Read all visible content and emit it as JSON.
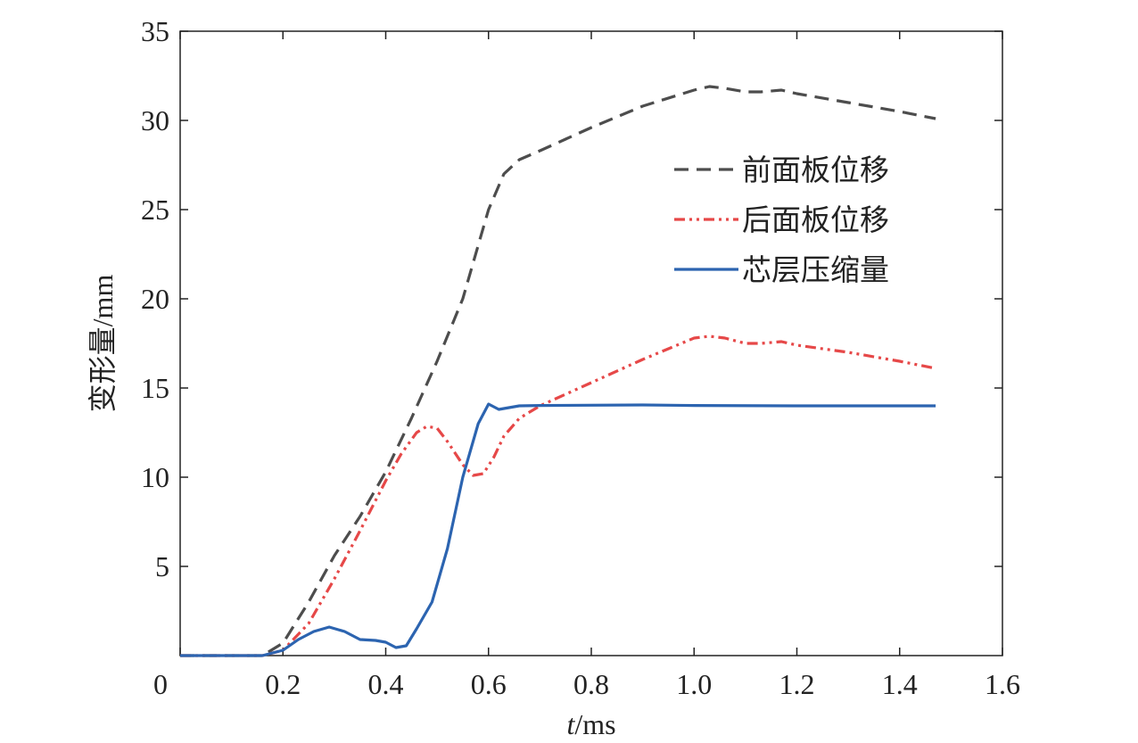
{
  "chart_data": {
    "type": "line",
    "xlabel_italic": "t",
    "xlabel_rest": "/ms",
    "ylabel": "变形量/mm",
    "xlim": [
      0,
      1.6
    ],
    "ylim": [
      0,
      35
    ],
    "xticks": [
      "0",
      "0.2",
      "0.4",
      "0.6",
      "0.8",
      "1.0",
      "1.2",
      "1.4",
      "1.6"
    ],
    "yticks": [
      "5",
      "10",
      "15",
      "20",
      "25",
      "30",
      "35"
    ],
    "grid": false,
    "legend_position": "top-right",
    "series": [
      {
        "name": "前面板位移",
        "color": "#4d4d4d",
        "dash": "16,9",
        "points": [
          [
            0,
            0
          ],
          [
            0.16,
            0
          ],
          [
            0.2,
            0.7
          ],
          [
            0.25,
            3
          ],
          [
            0.3,
            5.6
          ],
          [
            0.35,
            7.8
          ],
          [
            0.4,
            10.3
          ],
          [
            0.45,
            13.3
          ],
          [
            0.5,
            16.5
          ],
          [
            0.55,
            20
          ],
          [
            0.58,
            23
          ],
          [
            0.6,
            25
          ],
          [
            0.63,
            27
          ],
          [
            0.66,
            27.8
          ],
          [
            0.7,
            28.3
          ],
          [
            0.8,
            29.6
          ],
          [
            0.9,
            30.8
          ],
          [
            1.0,
            31.7
          ],
          [
            1.03,
            31.9
          ],
          [
            1.06,
            31.8
          ],
          [
            1.1,
            31.6
          ],
          [
            1.13,
            31.6
          ],
          [
            1.17,
            31.7
          ],
          [
            1.2,
            31.5
          ],
          [
            1.3,
            31.0
          ],
          [
            1.4,
            30.5
          ],
          [
            1.47,
            30.1
          ]
        ]
      },
      {
        "name": "后面板位移",
        "color": "#e64848",
        "dash": "12,5,3,5,3,5",
        "points": [
          [
            0,
            0
          ],
          [
            0.16,
            0
          ],
          [
            0.2,
            0.3
          ],
          [
            0.25,
            1.8
          ],
          [
            0.3,
            4.3
          ],
          [
            0.35,
            7
          ],
          [
            0.4,
            9.8
          ],
          [
            0.43,
            11.3
          ],
          [
            0.46,
            12.5
          ],
          [
            0.48,
            12.85
          ],
          [
            0.5,
            12.75
          ],
          [
            0.52,
            12
          ],
          [
            0.55,
            10.7
          ],
          [
            0.57,
            10.1
          ],
          [
            0.59,
            10.2
          ],
          [
            0.61,
            11.1
          ],
          [
            0.63,
            12.3
          ],
          [
            0.66,
            13.3
          ],
          [
            0.7,
            14.0
          ],
          [
            0.8,
            15.3
          ],
          [
            0.9,
            16.6
          ],
          [
            1.0,
            17.8
          ],
          [
            1.03,
            17.9
          ],
          [
            1.06,
            17.8
          ],
          [
            1.1,
            17.5
          ],
          [
            1.13,
            17.5
          ],
          [
            1.17,
            17.6
          ],
          [
            1.2,
            17.4
          ],
          [
            1.3,
            17.0
          ],
          [
            1.4,
            16.5
          ],
          [
            1.47,
            16.1
          ]
        ]
      },
      {
        "name": "芯层压缩量",
        "color": "#2c64b0",
        "dash": "",
        "points": [
          [
            0,
            0
          ],
          [
            0.16,
            0
          ],
          [
            0.2,
            0.3
          ],
          [
            0.23,
            0.9
          ],
          [
            0.26,
            1.35
          ],
          [
            0.29,
            1.6
          ],
          [
            0.32,
            1.35
          ],
          [
            0.35,
            0.9
          ],
          [
            0.38,
            0.85
          ],
          [
            0.4,
            0.75
          ],
          [
            0.42,
            0.45
          ],
          [
            0.44,
            0.55
          ],
          [
            0.46,
            1.5
          ],
          [
            0.49,
            3
          ],
          [
            0.52,
            6
          ],
          [
            0.55,
            10
          ],
          [
            0.58,
            13
          ],
          [
            0.6,
            14.1
          ],
          [
            0.62,
            13.8
          ],
          [
            0.64,
            13.9
          ],
          [
            0.66,
            14.0
          ],
          [
            0.7,
            14.02
          ],
          [
            0.9,
            14.05
          ],
          [
            1.0,
            14.02
          ],
          [
            1.2,
            14.0
          ],
          [
            1.47,
            14.0
          ]
        ]
      }
    ]
  }
}
